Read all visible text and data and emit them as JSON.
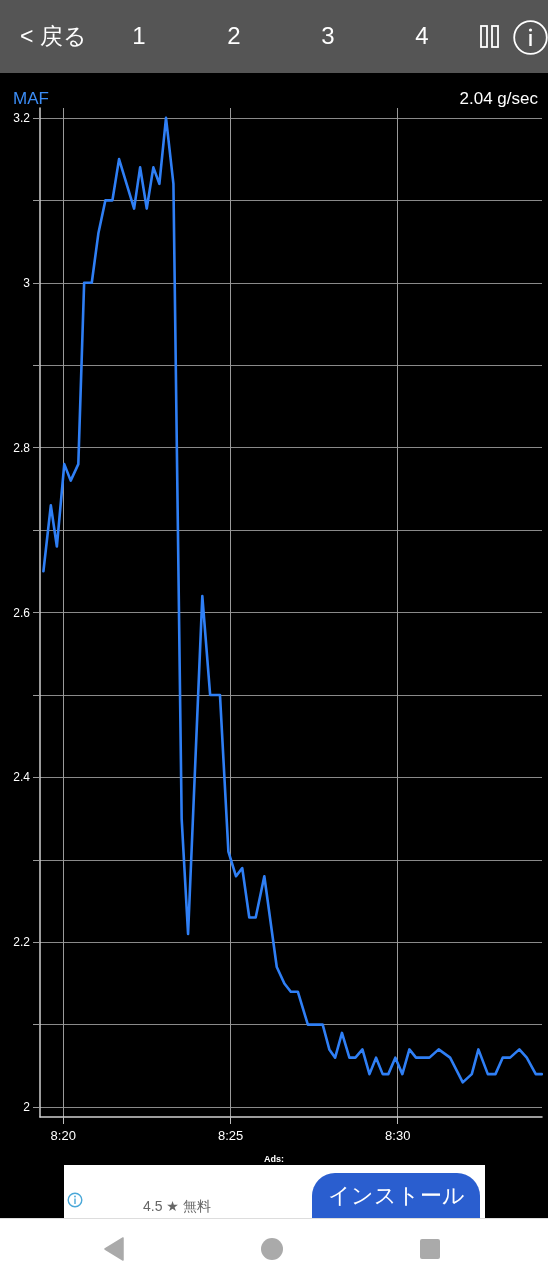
{
  "chart_data": {
    "type": "line",
    "title": "MAF",
    "subtitle": "2.04 g/sec",
    "annotations": [
      "< 戻る",
      "1",
      "2",
      "3",
      "4",
      "Ads:",
      "4.5 ★ 無料",
      "インストール"
    ],
    "x": [
      8.3234,
      8.3271,
      8.3301,
      8.3338,
      8.337,
      8.3408,
      8.3437,
      8.3475,
      8.3508,
      8.3543,
      8.3578,
      8.3611,
      8.3686,
      8.3716,
      8.3749,
      8.3782,
      8.3812,
      8.3845,
      8.3882,
      8.3923,
      8.3955,
      8.4026,
      8.4065,
      8.4114,
      8.4156,
      8.4194,
      8.4225,
      8.426,
      8.4292,
      8.4335,
      8.4397,
      8.4435,
      8.4467,
      8.4502,
      8.4552,
      8.4626,
      8.4659,
      8.4688,
      8.4722,
      8.4759,
      8.4789,
      8.4824,
      8.4859,
      8.4892,
      8.4925,
      8.4953,
      8.4988,
      8.5023,
      8.5058,
      8.5091,
      8.5158,
      8.5204,
      8.5261,
      8.5324,
      8.5369,
      8.5402,
      8.5449,
      8.5487,
      8.5523,
      8.556,
      8.5606,
      8.5643,
      8.5688,
      8.5718
    ],
    "series": [
      {
        "color": "#2f7ff5",
        "values": [
          2.65,
          2.73,
          2.68,
          2.78,
          2.76,
          2.78,
          3.0,
          3.0,
          3.06,
          3.1,
          3.1,
          3.15,
          3.09,
          3.14,
          3.09,
          3.14,
          3.12,
          3.2,
          3.12,
          2.35,
          2.21,
          2.62,
          2.5,
          2.5,
          2.31,
          2.28,
          2.29,
          2.23,
          2.23,
          2.28,
          2.17,
          2.15,
          2.14,
          2.14,
          2.1,
          2.1,
          2.07,
          2.06,
          2.09,
          2.06,
          2.06,
          2.07,
          2.04,
          2.06,
          2.04,
          2.04,
          2.06,
          2.04,
          2.07,
          2.06,
          2.06,
          2.07,
          2.06,
          2.03,
          2.04,
          2.07,
          2.04,
          2.04,
          2.06,
          2.06,
          2.07,
          2.06,
          2.04,
          2.04
        ]
      }
    ],
    "xlim": [
      8.3217,
      8.5719
    ],
    "ylim": [
      1.988,
      3.212
    ],
    "xticks": [
      {
        "value": 8.3333,
        "label": "8:20"
      },
      {
        "value": 8.4167,
        "label": "8:25"
      },
      {
        "value": 8.5,
        "label": "8:30"
      }
    ],
    "yticks": [
      2,
      {
        "value": 2.1,
        "label": null
      },
      2.2,
      {
        "value": 2.3,
        "label": null
      },
      2.4,
      {
        "value": 2.5,
        "label": null
      },
      2.6,
      {
        "value": 2.7,
        "label": null
      },
      2.8,
      {
        "value": 2.9,
        "label": null
      },
      3,
      {
        "value": 3.1,
        "label": null
      },
      3.2
    ],
    "grid": true
  }
}
